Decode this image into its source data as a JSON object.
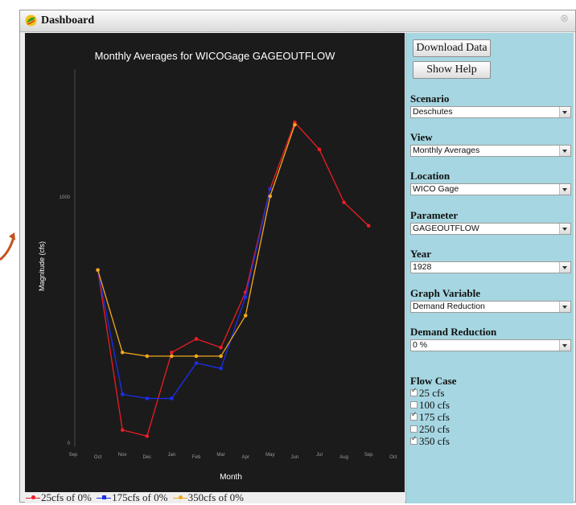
{
  "window": {
    "title": "Dashboard"
  },
  "chart_data": {
    "type": "line",
    "title": "Monthly Averages for WICOGage GAGEOUTFLOW",
    "xlabel": "Month",
    "ylabel": "Magnitude (cfs)",
    "categories": [
      "Sep",
      "Oct",
      "Nov",
      "Dec",
      "Jan",
      "Feb",
      "Mar",
      "Apr",
      "May",
      "Jun",
      "Jul",
      "Aug",
      "Sep",
      "Oct"
    ],
    "yticks": [
      0,
      1000
    ],
    "ylim": [
      0,
      1300
    ],
    "grid": false,
    "series": [
      {
        "name": "25cfs of 0%",
        "color": "#ee1c24",
        "marker": "circle",
        "values": [
          null,
          700,
          50,
          25,
          365,
          420,
          385,
          610,
          1030,
          1300,
          1190,
          975,
          880,
          null
        ]
      },
      {
        "name": "175cfs of 0%",
        "color": "#1c2fee",
        "marker": "square",
        "values": [
          null,
          700,
          195,
          178,
          178,
          322,
          300,
          590,
          1030,
          null,
          null,
          null,
          null,
          null
        ]
      },
      {
        "name": "350cfs of 0%",
        "color": "#f2a81d",
        "marker": "circle",
        "values": [
          null,
          700,
          365,
          350,
          350,
          350,
          350,
          515,
          1000,
          1290,
          null,
          null,
          null,
          null
        ]
      }
    ],
    "legend_position": "bottom"
  },
  "legend": [
    {
      "label": "25cfs of 0%",
      "color": "#ee1c24",
      "radius": "50%"
    },
    {
      "label": "175cfs of 0%",
      "color": "#1c2fee",
      "radius": "0"
    },
    {
      "label": "350cfs of 0%",
      "color": "#f2a81d",
      "radius": "50%"
    }
  ],
  "panel": {
    "download_button": "Download Data",
    "help_button": "Show Help",
    "fields": [
      {
        "label": "Scenario",
        "value": "Deschutes"
      },
      {
        "label": "View",
        "value": "Monthly Averages"
      },
      {
        "label": "Location",
        "value": "WICO Gage"
      },
      {
        "label": "Parameter",
        "value": "GAGEOUTFLOW"
      },
      {
        "label": "Year",
        "value": "1928"
      },
      {
        "label": "Graph Variable",
        "value": "Demand Reduction"
      },
      {
        "label": "Demand Reduction",
        "value": "0 %"
      }
    ],
    "flow_case": {
      "label": "Flow Case",
      "items": [
        {
          "label": "25 cfs",
          "checked": true
        },
        {
          "label": "100 cfs",
          "checked": false
        },
        {
          "label": "175 cfs",
          "checked": true
        },
        {
          "label": "250 cfs",
          "checked": false
        },
        {
          "label": "350 cfs",
          "checked": true
        }
      ]
    }
  }
}
